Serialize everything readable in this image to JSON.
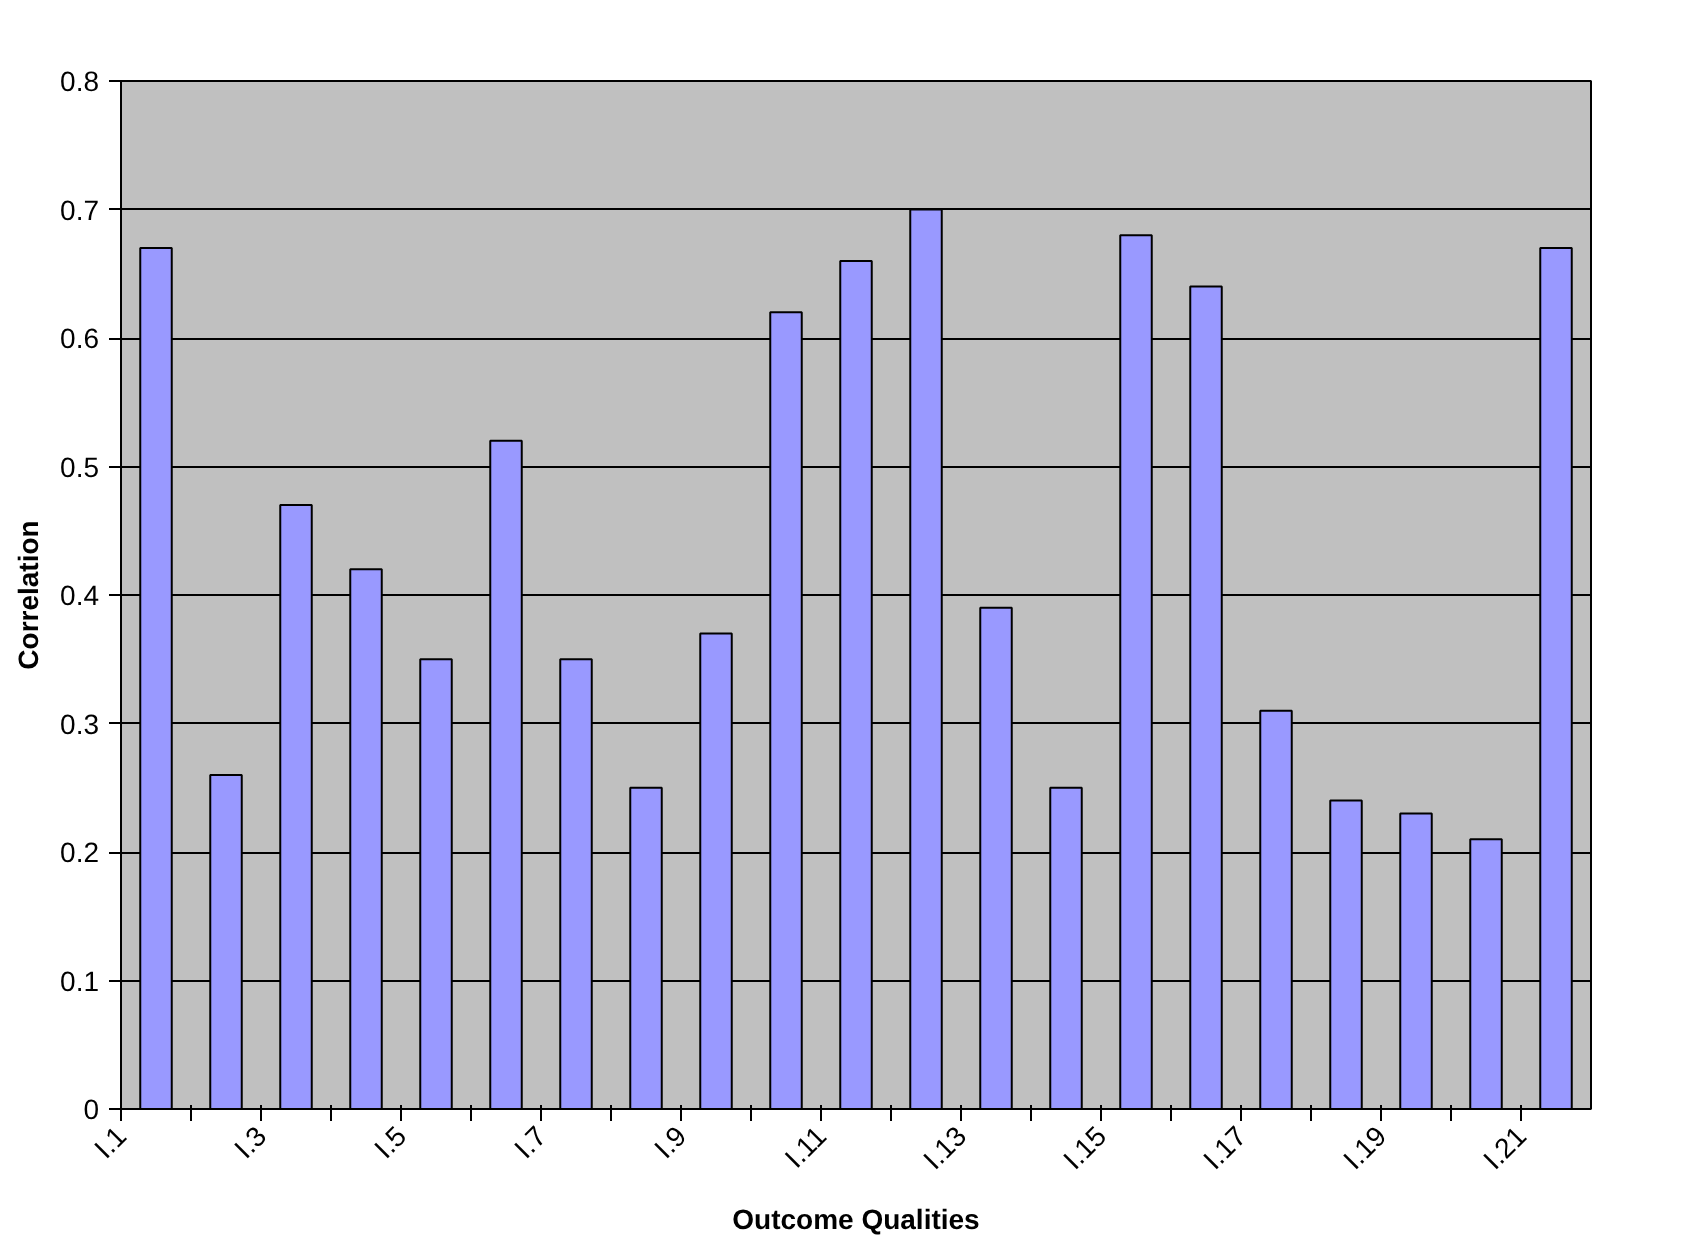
{
  "chart_data": {
    "type": "bar",
    "xlabel": "Outcome Qualities",
    "ylabel": "Correlation",
    "categories": [
      "I.1",
      null,
      "I.3",
      null,
      "I.5",
      null,
      "I.7",
      null,
      "I.9",
      null,
      "I.11",
      null,
      "I.13",
      null,
      "I.15",
      null,
      "I.17",
      null,
      "I.19",
      null,
      "I.21"
    ],
    "values": [
      0.67,
      0.26,
      0.47,
      0.42,
      0.35,
      0.52,
      0.35,
      0.25,
      0.37,
      0.62,
      0.66,
      0.7,
      0.39,
      0.25,
      0.68,
      0.64,
      0.31,
      0.24,
      0.23,
      0.21,
      0.67
    ],
    "color": "#9999ff",
    "ylim": [
      0,
      0.8
    ],
    "yticks": [
      0,
      0.1,
      0.2,
      0.3,
      0.4,
      0.5,
      0.6,
      0.7,
      0.8
    ],
    "grid": "y"
  }
}
